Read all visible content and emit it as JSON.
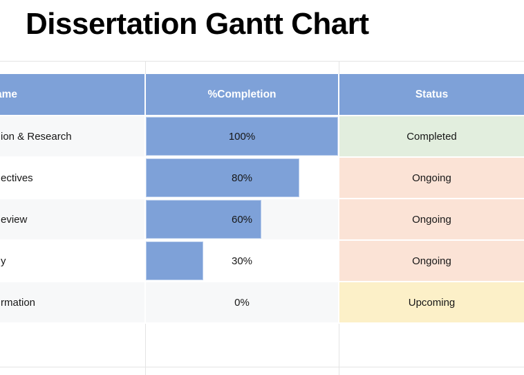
{
  "title": "Dissertation Gantt Chart",
  "table": {
    "columns": [
      {
        "label": "ame"
      },
      {
        "label": "%Completion"
      },
      {
        "label": "Status"
      }
    ],
    "rows": [
      {
        "task": "ion & Research",
        "completion": "100%",
        "completion_pct": 100,
        "status": "Completed",
        "status_type": "completed"
      },
      {
        "task": "ectives",
        "completion": "80%",
        "completion_pct": 80,
        "status": "Ongoing",
        "status_type": "ongoing"
      },
      {
        "task": "eview",
        "completion": "60%",
        "completion_pct": 60,
        "status": "Ongoing",
        "status_type": "ongoing"
      },
      {
        "task": "y",
        "completion": "30%",
        "completion_pct": 30,
        "status": "Ongoing",
        "status_type": "ongoing"
      },
      {
        "task": "rmation",
        "completion": "0%",
        "completion_pct": 0,
        "status": "Upcoming",
        "status_type": "upcoming"
      }
    ]
  },
  "chart_data": {
    "type": "table",
    "title": "Dissertation Gantt Chart",
    "columns": [
      "ame",
      "%Completion",
      "Status"
    ],
    "categories": [
      "ion & Research",
      "ectives",
      "eview",
      "y",
      "rmation"
    ],
    "series": [
      {
        "name": "%Completion",
        "values": [
          100,
          80,
          60,
          30,
          0
        ]
      },
      {
        "name": "Status",
        "values": [
          "Completed",
          "Ongoing",
          "Ongoing",
          "Ongoing",
          "Upcoming"
        ]
      }
    ],
    "layout": "completion column rendered as left-anchored blue data bars inside cells; legend none; grid faint"
  },
  "colors": {
    "header_bg": "#7ea1d8",
    "bar_fill": "#7ea1d8",
    "bar_border": "#b7ccec",
    "status_completed_bg": "#e2eede",
    "status_ongoing_bg": "#fbe3d6",
    "status_upcoming_bg": "#fcf0c8",
    "row_alt_bg": "#f7f8f9",
    "gridline": "#e4e4e4",
    "header_text": "#ffffff",
    "cell_text": "#161616"
  }
}
